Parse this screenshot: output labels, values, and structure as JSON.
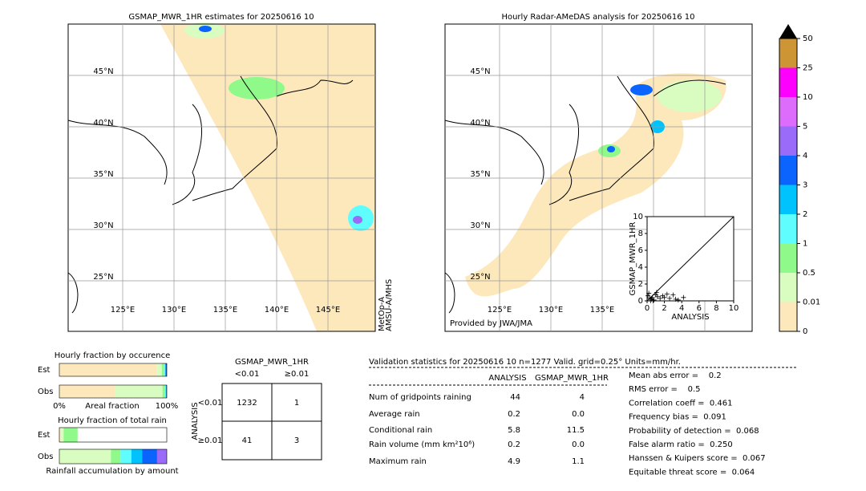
{
  "maps": [
    {
      "title": "GSMAP_MWR_1HR estimates for 20250616 10",
      "lat_labels": [
        "45°N",
        "40°N",
        "35°N",
        "30°N",
        "25°N"
      ],
      "lon_labels": [
        "125°E",
        "130°E",
        "135°E",
        "140°E",
        "145°E"
      ],
      "source_lines": [
        "MetOp-A",
        "AMSU-A/MHS"
      ]
    },
    {
      "title": "Hourly Radar-AMeDAS analysis for 20250616 10",
      "lat_labels": [
        "45°N",
        "40°N",
        "35°N",
        "30°N",
        "25°N"
      ],
      "lon_labels": [
        "125°E",
        "130°E",
        "135°E"
      ],
      "credit": "Provided by JWA/JMA"
    }
  ],
  "chart_data": [
    {
      "type": "colorbar",
      "ticks": [
        0,
        0.01,
        0.5,
        1,
        2,
        3,
        4,
        5,
        10,
        25,
        50
      ],
      "colors": [
        "#fde8bc",
        "#d9fcc0",
        "#8ff98a",
        "#5ffdfd",
        "#00c3fd",
        "#0a64fd",
        "#9a6af9",
        "#dd6cfd",
        "#fd00fd",
        "#cd9533"
      ]
    },
    {
      "type": "scatter",
      "xlabel": "ANALYSIS",
      "ylabel": "GSMAP_MWR_1HR",
      "xlim": [
        0,
        10
      ],
      "ylim": [
        0,
        10
      ],
      "xticks": [
        0,
        2,
        4,
        6,
        8,
        10
      ],
      "yticks": [
        0,
        2,
        4,
        6,
        8,
        10
      ],
      "color": "#000000",
      "x": [
        0.1,
        0.2,
        0.3,
        0.5,
        0.6,
        0.8,
        1.0,
        1.2,
        1.5,
        1.8,
        2.0,
        2.3,
        2.6,
        3.0,
        3.3,
        3.6,
        4.2,
        0.4,
        0.7,
        1.1
      ],
      "y": [
        0.6,
        0.9,
        0.3,
        0.2,
        0.4,
        0.1,
        0.7,
        0.5,
        0.3,
        0.6,
        0.4,
        0.8,
        0.3,
        0.7,
        0.2,
        0.1,
        0.4,
        0,
        0,
        1.0
      ]
    },
    {
      "type": "stacked-bar-h",
      "title": "Hourly fraction by occurence",
      "categories": [
        "Est",
        "Obs"
      ],
      "xlim": [
        0,
        100
      ],
      "xticks": [
        {
          "value": 0,
          "label": "0%"
        },
        {
          "value": 100,
          "label": "100%"
        }
      ],
      "xlabel": "Areal fraction",
      "series": [
        {
          "color": "#fde8bc",
          "values": [
            90.5,
            52
          ]
        },
        {
          "color": "#d9fcc0",
          "values": [
            5,
            44
          ]
        },
        {
          "color": "#8ff98a",
          "values": [
            2,
            2
          ]
        },
        {
          "color": "#5ffdfd",
          "values": [
            1,
            1
          ]
        },
        {
          "color": "#00c3fd",
          "values": [
            0.5,
            0.5
          ]
        },
        {
          "color": "#0a64fd",
          "values": [
            1,
            0.5
          ]
        }
      ]
    },
    {
      "type": "stacked-bar-h",
      "title": "Hourly fraction of total rain",
      "categories": [
        "Est",
        "Obs"
      ],
      "xlim": [
        0,
        100
      ],
      "xlabel": "Rainfall accumulation by amount",
      "series": [
        {
          "color": "#fde8bc",
          "values": [
            1,
            0
          ]
        },
        {
          "color": "#d9fcc0",
          "values": [
            3,
            48
          ]
        },
        {
          "color": "#8ff98a",
          "values": [
            13,
            9
          ]
        },
        {
          "color": "#5ffdfd",
          "values": [
            0,
            10
          ]
        },
        {
          "color": "#00c3fd",
          "values": [
            0,
            10
          ]
        },
        {
          "color": "#0a64fd",
          "values": [
            0,
            14
          ]
        },
        {
          "color": "#9a6af9",
          "values": [
            0,
            9
          ]
        }
      ]
    }
  ],
  "contingency": {
    "title": "GSMAP_MWR_1HR",
    "columns": [
      "<0.01",
      "≥0.01"
    ],
    "row_axis": "ANALYSIS",
    "rows": [
      "<0.01",
      "≥0.01"
    ],
    "cells": [
      [
        "1232",
        "1"
      ],
      [
        "41",
        "3"
      ]
    ]
  },
  "validation": {
    "header": "Validation statistics for 20250616 10  n=1277 Valid. grid=0.25° Units=mm/hr.",
    "columns": [
      "ANALYSIS",
      "GSMAP_MWR_1HR"
    ],
    "rows": [
      [
        "Num of gridpoints raining",
        "44",
        "4"
      ],
      [
        "Average rain",
        "0.2",
        "0.0"
      ],
      [
        "Conditional rain",
        "5.8",
        "11.5"
      ],
      [
        "Rain volume (mm km²10⁶)",
        "0.2",
        "0.0"
      ],
      [
        "Maximum rain",
        "4.9",
        "1.1"
      ]
    ],
    "scores": [
      "Mean abs error =    0.2",
      "RMS error =    0.5",
      "Correlation coeff =  0.461",
      "Frequency bias =  0.091",
      "Probability of detection =  0.068",
      "False alarm ratio =  0.250",
      "Hanssen & Kuipers score =  0.067",
      "Equitable threat score =  0.064"
    ]
  }
}
